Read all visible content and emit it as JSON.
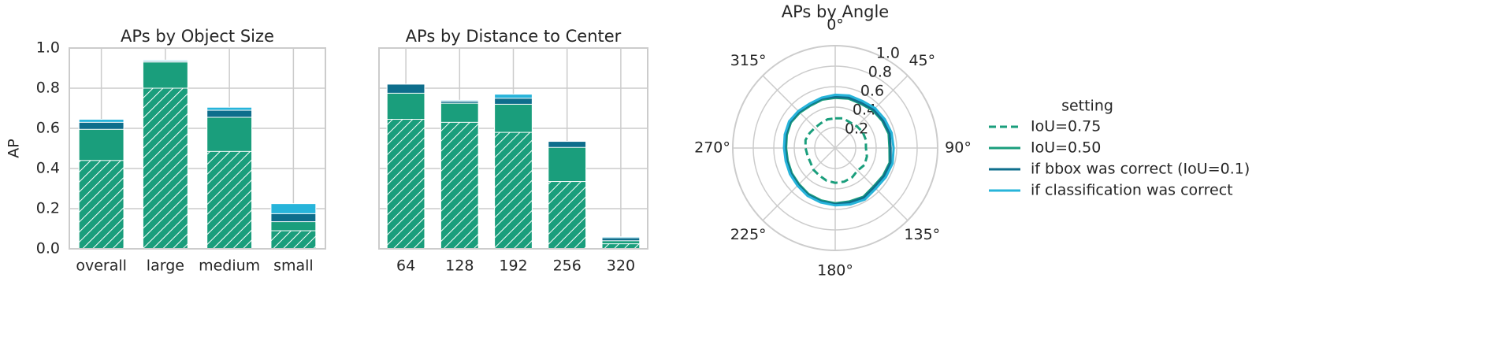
{
  "chart_data": [
    {
      "type": "bar",
      "title": "APs by Object Size",
      "ylabel": "AP",
      "categories": [
        "overall",
        "large",
        "medium",
        "small"
      ],
      "series": [
        {
          "color": "#1a9e7c",
          "hatch": true,
          "values": [
            0.44,
            0.8,
            0.485,
            0.09
          ]
        },
        {
          "color": "#1a9e7c",
          "values": [
            0.595,
            0.93,
            0.655,
            0.135
          ]
        },
        {
          "color": "#0e6e8c",
          "values": [
            0.63,
            0.935,
            0.69,
            0.175
          ]
        },
        {
          "color": "#27b4da",
          "values": [
            0.645,
            0.94,
            0.705,
            0.225
          ]
        }
      ],
      "ylim": [
        0,
        1
      ],
      "yticks": [
        {
          "value": 0,
          "label": "0.0"
        },
        0.2,
        0.4,
        0.6,
        0.8,
        {
          "value": 1,
          "label": "1.0"
        }
      ],
      "grid": true
    },
    {
      "type": "bar",
      "title": "APs by Distance to Center",
      "categories": [
        "64",
        "128",
        "192",
        "256",
        "320"
      ],
      "series": [
        {
          "color": "#1a9e7c",
          "hatch": true,
          "values": [
            0.645,
            0.63,
            0.58,
            0.335,
            0.025
          ]
        },
        {
          "color": "#1a9e7c",
          "values": [
            0.775,
            0.725,
            0.72,
            0.505,
            0.04
          ]
        },
        {
          "color": "#0e6e8c",
          "values": [
            0.82,
            0.735,
            0.75,
            0.535,
            0.055
          ]
        },
        {
          "color": "#27b4da",
          "values": [
            0.82,
            0.74,
            0.77,
            0.535,
            0.06
          ]
        }
      ],
      "ylim": [
        0,
        1
      ],
      "yticks": [
        0,
        0.2,
        0.4,
        0.6,
        0.8,
        1
      ],
      "show_ytick_labels": false,
      "grid": true
    },
    {
      "type": "polar",
      "title": "APs by Angle",
      "x": [
        0,
        15,
        30,
        45,
        60,
        75,
        90,
        105,
        120,
        135,
        150,
        165,
        180,
        195,
        210,
        225,
        240,
        255,
        270,
        285,
        300,
        315,
        330,
        345
      ],
      "thetaticks": [
        {
          "value": 0,
          "label": "0°"
        },
        {
          "value": 45,
          "label": "45°"
        },
        {
          "value": 90,
          "label": "90°"
        },
        {
          "value": 135,
          "label": "135°"
        },
        {
          "value": 180,
          "label": "180°"
        },
        {
          "value": 225,
          "label": "225°"
        },
        {
          "value": 270,
          "label": "270°"
        },
        {
          "value": 315,
          "label": "315°"
        }
      ],
      "rlim": [
        0,
        1
      ],
      "rticks": [
        0.2,
        0.4,
        0.6,
        0.8,
        {
          "value": 1,
          "label": "1.0"
        }
      ],
      "series": [
        {
          "name": "IoU=0.75",
          "color": "#1a9e7c",
          "dash": true,
          "values": [
            0.29,
            0.3,
            0.29,
            0.3,
            0.31,
            0.31,
            0.3,
            0.32,
            0.33,
            0.31,
            0.33,
            0.34,
            0.34,
            0.33,
            0.31,
            0.3,
            0.28,
            0.28,
            0.29,
            0.3,
            0.29,
            0.28,
            0.28,
            0.29
          ]
        },
        {
          "name": "IoU=0.50",
          "color": "#1a9e7c",
          "values": [
            0.49,
            0.5,
            0.5,
            0.52,
            0.53,
            0.54,
            0.53,
            0.55,
            0.54,
            0.53,
            0.55,
            0.54,
            0.54,
            0.53,
            0.52,
            0.5,
            0.49,
            0.48,
            0.48,
            0.49,
            0.5,
            0.49,
            0.48,
            0.49
          ]
        },
        {
          "name": "if bbox was correct (IoU=0.1)",
          "color": "#0e6e8c",
          "values": [
            0.5,
            0.51,
            0.51,
            0.53,
            0.54,
            0.55,
            0.54,
            0.56,
            0.55,
            0.54,
            0.56,
            0.55,
            0.55,
            0.54,
            0.53,
            0.51,
            0.5,
            0.49,
            0.49,
            0.5,
            0.51,
            0.5,
            0.49,
            0.5
          ]
        },
        {
          "name": "if classification was correct",
          "color": "#27b4da",
          "values": [
            0.52,
            0.53,
            0.53,
            0.55,
            0.56,
            0.57,
            0.57,
            0.58,
            0.57,
            0.56,
            0.58,
            0.57,
            0.56,
            0.55,
            0.54,
            0.52,
            0.51,
            0.5,
            0.5,
            0.51,
            0.52,
            0.51,
            0.5,
            0.51
          ]
        }
      ],
      "legend": {
        "title": "setting",
        "position": "right"
      }
    }
  ]
}
